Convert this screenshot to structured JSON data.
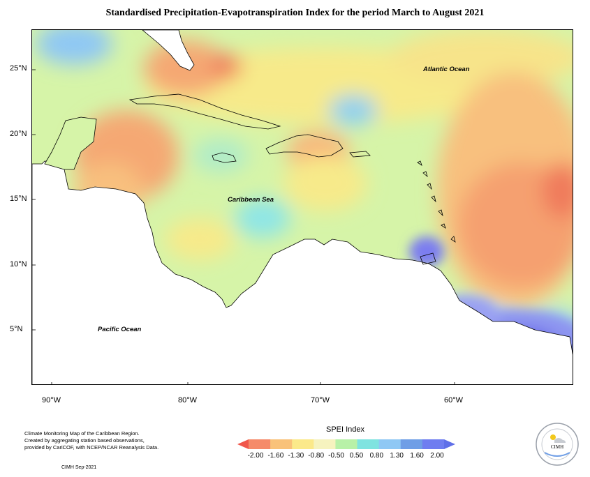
{
  "title": "Standardised Precipitation-Evapotranspiration Index for the period March to August 2021",
  "map": {
    "lat_labels": [
      "25°N",
      "20°N",
      "15°N",
      "10°N",
      "5°N"
    ],
    "lon_labels": [
      "90°W",
      "80°W",
      "70°W",
      "60°W"
    ],
    "ocean_labels": {
      "atlantic": "Atlantic Ocean",
      "caribbean": "Caribbean Sea",
      "pacific": "Pacific Ocean"
    }
  },
  "legend": {
    "title": "SPEI Index",
    "ticks": [
      "-2.00",
      "-1.60",
      "-1.30",
      "-0.80",
      "-0.50",
      "0.50",
      "0.80",
      "1.30",
      "1.60",
      "2.00"
    ],
    "colors": [
      "#f0564a",
      "#f58b6a",
      "#f9c27a",
      "#fbe98a",
      "#f6f3bf",
      "#b8f1a8",
      "#7fe3e0",
      "#8fc8f4",
      "#6f9ee6",
      "#6f7df0",
      "#5f6fe8"
    ]
  },
  "footer": {
    "line1": "Climate Monitoring Map of the Caribbean Region.",
    "line2": "Created by aggregating station based observations,",
    "line3": "provided by CariCOF, with NCEP/NCAR Reanalysis Data.",
    "credit": "CIMH  Sep-2021"
  },
  "logo": {
    "text": "CIMH"
  }
}
